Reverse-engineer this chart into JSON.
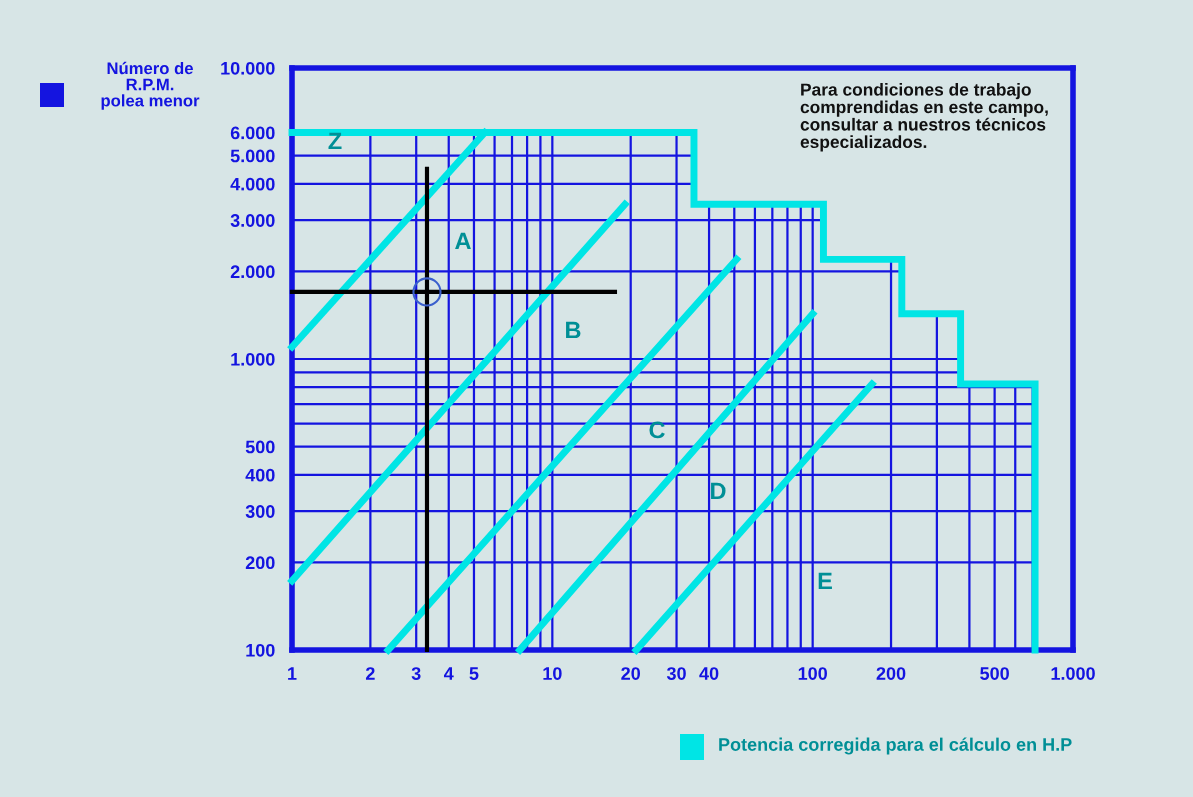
{
  "chart_data": {
    "type": "line",
    "xlabel": "Potencia corregida para el cálculo en H.P",
    "ylabel": "Número de R.P.M. polea menor",
    "log": "xy",
    "grid": true,
    "marker": "none",
    "line_style": "solid",
    "xlim": [
      1,
      1000
    ],
    "ylim": [
      100,
      10000
    ],
    "xticks": [
      1,
      2,
      3,
      4,
      5,
      {
        "value": 6,
        "label": null
      },
      {
        "value": 7,
        "label": null
      },
      {
        "value": 8,
        "label": null
      },
      {
        "value": 9,
        "label": null
      },
      10,
      20,
      30,
      40,
      {
        "value": 50,
        "label": null
      },
      {
        "value": 60,
        "label": null
      },
      {
        "value": 70,
        "label": null
      },
      {
        "value": 80,
        "label": null
      },
      {
        "value": 90,
        "label": null
      },
      100,
      200,
      {
        "value": 300,
        "label": null
      },
      {
        "value": 400,
        "label": null
      },
      500,
      {
        "value": 600,
        "label": null
      },
      {
        "value": 700,
        "label": null
      },
      {
        "value": 1000,
        "label": "1.000"
      }
    ],
    "yticks": [
      100,
      200,
      300,
      400,
      500,
      {
        "value": 600,
        "label": null
      },
      {
        "value": 700,
        "label": null
      },
      {
        "value": 800,
        "label": null
      },
      {
        "value": 900,
        "label": null
      },
      {
        "value": 1000,
        "label": "1.000"
      },
      {
        "value": 2000,
        "label": "2.000"
      },
      {
        "value": 3000,
        "label": "3.000"
      },
      {
        "value": 4000,
        "label": "4.000"
      },
      {
        "value": 5000,
        "label": "5.000"
      },
      {
        "value": 6000,
        "label": "6.000"
      },
      {
        "value": 10000,
        "label": "10.000"
      }
    ],
    "series": [
      {
        "color": "#00e5e5",
        "x": [
          1,
          35,
          35,
          110,
          110,
          220,
          220,
          370,
          370,
          715,
          715
        ],
        "values": [
          6000,
          6000,
          3400,
          3400,
          2200,
          2200,
          1430,
          1430,
          820,
          820,
          100
        ]
      },
      {
        "color": "#00e5e5",
        "x": [
          1,
          5.5
        ],
        "values": [
          1100,
          6000
        ]
      },
      {
        "color": "#00e5e5",
        "x": [
          1,
          19
        ],
        "values": [
          173,
          3400
        ]
      },
      {
        "color": "#00e5e5",
        "x": [
          2.34,
          51
        ],
        "values": [
          100,
          2200
        ]
      },
      {
        "color": "#00e5e5",
        "x": [
          7.5,
          100
        ],
        "values": [
          100,
          1430
        ]
      },
      {
        "color": "#00e5e5",
        "x": [
          21,
          169
        ],
        "values": [
          100,
          820
        ]
      },
      {
        "color": "#000000",
        "x": [
          1,
          17.4
        ],
        "values": [
          1700,
          1700
        ]
      },
      {
        "color": "#000000",
        "x": [
          3.3,
          3.3
        ],
        "values": [
          100,
          4500
        ]
      },
      {
        "type": "scatter",
        "marker": "circle",
        "color": "#3a5fcd",
        "x": [
          3.3
        ],
        "values": [
          1700
        ]
      }
    ],
    "annotations": [
      "Z",
      "A",
      "B",
      "C",
      "D",
      "E",
      "Para condiciones de trabajo\ncomprendidas en este campo,\nconsultar a nuestros técnicos\nespecializados."
    ]
  }
}
